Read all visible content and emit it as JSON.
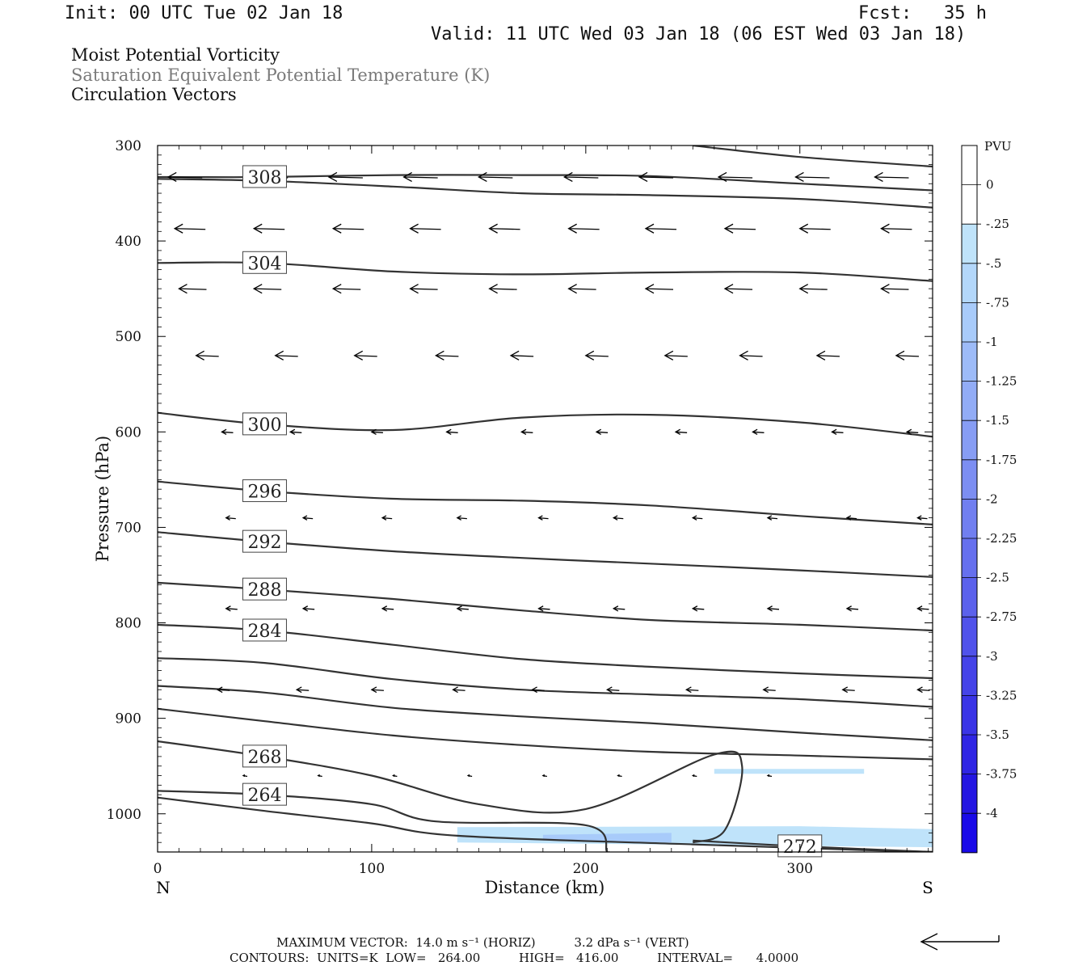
{
  "header": {
    "init": "Init: 00 UTC Tue 02 Jan 18",
    "fcst": "Fcst:   35 h",
    "valid": "Valid: 11 UTC Wed 03 Jan 18 (06 EST Wed 03 Jan 18)"
  },
  "fields": {
    "field1": "Moist Potential Vorticity",
    "field2": "Saturation Equivalent Potential Temperature (K)",
    "field3": "Circulation Vectors"
  },
  "footer": {
    "max_vector": "MAXIMUM VECTOR:  14.0 m s⁻¹ (HORIZ)          3.2 dPa s⁻¹ (VERT)",
    "contours": "CONTOURS:  UNITS=K  LOW=   264.00          HIGH=   416.00          INTERVAL=      4.0000"
  },
  "chart_data": {
    "type": "line",
    "xlabel": "Distance (km)",
    "ylabel": "Pressure (hPa)",
    "xlim": [
      0,
      362
    ],
    "ylim": [
      300,
      1040
    ],
    "x_ticks": [
      0,
      100,
      200,
      300
    ],
    "y_ticks": [
      300,
      400,
      500,
      600,
      700,
      800,
      900,
      1000
    ],
    "x_end_labels": [
      "N",
      "S"
    ],
    "colorbar": {
      "title": "PVU",
      "labels": [
        "0",
        "-.25",
        "-.5",
        "-.75",
        "-1",
        "-1.25",
        "-1.5",
        "-1.75",
        "-2",
        "-2.25",
        "-2.5",
        "-2.75",
        "-3",
        "-3.25",
        "-3.5",
        "-3.75",
        "-4"
      ],
      "colors": [
        "#ffffff",
        "#ffffff",
        "#bfe3fa",
        "#b3d7fa",
        "#a8cbfa",
        "#9dbbf8",
        "#92acf6",
        "#879df4",
        "#7c8ef2",
        "#717ff0",
        "#6670ee",
        "#5b61ec",
        "#5052ea",
        "#4543e8",
        "#3a34e6",
        "#2f25e4",
        "#2416e2",
        "#190ae8"
      ]
    },
    "series": [
      {
        "label": "308",
        "x": [
          0,
          50,
          110,
          170,
          230,
          300,
          362
        ],
        "y": [
          333,
          333,
          331,
          331,
          332,
          340,
          347
        ]
      },
      {
        "label": "",
        "x": [
          0,
          50,
          110,
          170,
          230,
          300,
          362
        ],
        "y": [
          335,
          337,
          343,
          350,
          352,
          356,
          365
        ]
      },
      {
        "label": "",
        "x": [
          250,
          300,
          362
        ],
        "y": [
          300,
          312,
          322
        ]
      },
      {
        "label": "304",
        "x": [
          0,
          50,
          110,
          170,
          230,
          300,
          362
        ],
        "y": [
          423,
          423,
          432,
          435,
          433,
          433,
          442
        ]
      },
      {
        "label": "300",
        "x": [
          0,
          50,
          110,
          170,
          230,
          300,
          362
        ],
        "y": [
          580,
          592,
          598,
          585,
          582,
          590,
          605
        ]
      },
      {
        "label": "296",
        "x": [
          0,
          50,
          110,
          170,
          230,
          300,
          362
        ],
        "y": [
          652,
          662,
          670,
          672,
          677,
          688,
          697
        ]
      },
      {
        "label": "292",
        "x": [
          0,
          50,
          110,
          170,
          230,
          300,
          362
        ],
        "y": [
          705,
          715,
          725,
          732,
          738,
          745,
          752
        ]
      },
      {
        "label": "288",
        "x": [
          0,
          50,
          110,
          170,
          230,
          300,
          362
        ],
        "y": [
          758,
          765,
          775,
          787,
          797,
          802,
          808
        ]
      },
      {
        "label": "284",
        "x": [
          0,
          50,
          110,
          170,
          230,
          300,
          362
        ],
        "y": [
          802,
          808,
          823,
          838,
          846,
          853,
          858
        ]
      },
      {
        "label": "",
        "x": [
          0,
          50,
          110,
          170,
          230,
          300,
          362
        ],
        "y": [
          837,
          842,
          859,
          870,
          875,
          880,
          888
        ]
      },
      {
        "label": "",
        "x": [
          0,
          50,
          110,
          170,
          230,
          300,
          362
        ],
        "y": [
          866,
          873,
          889,
          898,
          905,
          915,
          923
        ]
      },
      {
        "label": "",
        "x": [
          0,
          50,
          110,
          170,
          230,
          300,
          362
        ],
        "y": [
          890,
          903,
          918,
          928,
          935,
          939,
          943
        ]
      },
      {
        "label": "268",
        "x": [
          0,
          50,
          100,
          150,
          200,
          260,
          273,
          265,
          250
        ],
        "y": [
          924,
          940,
          960,
          990,
          995,
          938,
          950,
          1017,
          1030
        ]
      },
      {
        "label": "264",
        "x": [
          0,
          50,
          100,
          130,
          200,
          210,
          211
        ],
        "y": [
          976,
          980,
          990,
          1008,
          1012,
          1040,
          1040
        ]
      },
      {
        "label": "",
        "x": [
          0,
          50,
          100,
          140,
          250,
          330,
          362
        ],
        "y": [
          983,
          997,
          1010,
          1023,
          1032,
          1038,
          1040
        ]
      },
      {
        "label": "272",
        "x": [
          250,
          300,
          362
        ],
        "y": [
          1028,
          1034,
          1040
        ]
      }
    ],
    "pv_shading": [
      {
        "x": [
          140,
          300,
          362,
          362,
          140
        ],
        "y": [
          1014,
          1013,
          1016,
          1035,
          1030
        ],
        "level": "-.25"
      },
      {
        "x": [
          260,
          330,
          330,
          260
        ],
        "y": [
          953,
          953,
          958,
          958
        ],
        "level": "-.25"
      },
      {
        "x": [
          180,
          240,
          240,
          180
        ],
        "y": [
          1022,
          1020,
          1030,
          1028
        ],
        "level": "-.75"
      }
    ]
  }
}
